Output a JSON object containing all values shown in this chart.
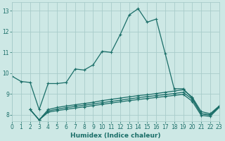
{
  "xlabel": "Humidex (Indice chaleur)",
  "bg_color": "#cde8e5",
  "grid_color": "#a8ccca",
  "line_color": "#1a6e68",
  "xlim": [
    0,
    23
  ],
  "ylim": [
    7.7,
    13.4
  ],
  "yticks": [
    8,
    9,
    10,
    11,
    12,
    13
  ],
  "xticks": [
    0,
    1,
    2,
    3,
    4,
    5,
    6,
    7,
    8,
    9,
    10,
    11,
    12,
    13,
    14,
    15,
    16,
    17,
    18,
    19,
    20,
    21,
    22,
    23
  ],
  "line1_x": [
    0,
    1,
    2,
    3,
    4,
    5,
    6,
    7,
    8,
    9,
    10,
    11,
    12,
    13,
    14,
    15,
    16,
    17,
    18,
    19,
    20,
    21,
    22,
    23
  ],
  "line1_y": [
    9.85,
    9.6,
    9.55,
    8.25,
    9.5,
    9.5,
    9.55,
    10.2,
    10.15,
    10.4,
    11.05,
    11.0,
    11.85,
    12.8,
    13.1,
    12.45,
    12.6,
    10.95,
    9.25,
    9.25,
    8.8,
    8.05,
    8.0,
    8.4
  ],
  "line2_x": [
    2,
    3,
    4,
    5,
    6,
    7,
    8,
    9,
    10,
    11,
    12,
    13,
    14,
    15,
    16,
    17,
    18,
    19,
    20,
    21,
    22,
    23
  ],
  "line2_y": [
    8.25,
    7.75,
    8.25,
    8.35,
    8.42,
    8.48,
    8.54,
    8.6,
    8.68,
    8.74,
    8.8,
    8.86,
    8.92,
    8.96,
    9.02,
    9.08,
    9.14,
    9.2,
    8.85,
    8.15,
    8.05,
    8.42
  ],
  "line3_x": [
    2,
    3,
    4,
    5,
    6,
    7,
    8,
    9,
    10,
    11,
    12,
    13,
    14,
    15,
    16,
    17,
    18,
    19,
    20,
    21,
    22,
    23
  ],
  "line3_y": [
    8.25,
    7.75,
    8.18,
    8.27,
    8.34,
    8.4,
    8.46,
    8.52,
    8.58,
    8.64,
    8.7,
    8.76,
    8.82,
    8.87,
    8.92,
    8.97,
    9.02,
    9.08,
    8.75,
    8.05,
    7.98,
    8.38
  ],
  "line4_x": [
    2,
    3,
    4,
    5,
    6,
    7,
    8,
    9,
    10,
    11,
    12,
    13,
    14,
    15,
    16,
    17,
    18,
    19,
    20,
    21,
    22,
    23
  ],
  "line4_y": [
    8.25,
    7.75,
    8.12,
    8.2,
    8.26,
    8.32,
    8.38,
    8.44,
    8.5,
    8.56,
    8.62,
    8.68,
    8.73,
    8.78,
    8.83,
    8.88,
    8.93,
    8.98,
    8.65,
    7.97,
    7.92,
    8.35
  ]
}
